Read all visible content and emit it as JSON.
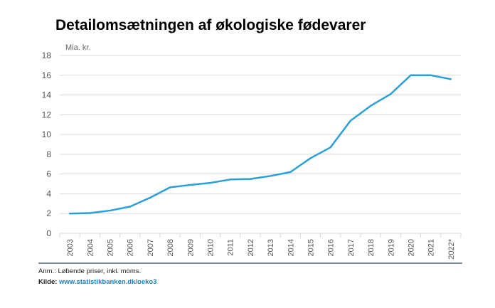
{
  "title": "Detailomsætningen af økologiske fødevarer",
  "note": "Anm.: Løbende priser, inkl. moms.",
  "source": {
    "label": "Kilde:",
    "link": "www.statistikbanken.dk/oeko3"
  },
  "colors": {
    "line": "#2a9fd8",
    "grid": "#d9d9d9",
    "bottom_rule": "#2a4a6a"
  },
  "chart_data": {
    "type": "line",
    "title": "Detailomsætningen af økologiske fødevarer",
    "ylabel": "Mia. kr.",
    "xlabel": "",
    "ylim": [
      0,
      18
    ],
    "yticks": [
      0,
      2,
      4,
      6,
      8,
      10,
      12,
      14,
      16,
      18
    ],
    "grid": true,
    "categories": [
      "2003",
      "2004",
      "2005",
      "2006",
      "2007",
      "2008",
      "2009",
      "2010",
      "2011",
      "2012",
      "2013",
      "2014",
      "2015",
      "2016",
      "2017",
      "2018",
      "2019",
      "2020",
      "2021",
      "2022*"
    ],
    "values": [
      2.0,
      2.05,
      2.3,
      2.7,
      3.6,
      4.65,
      4.9,
      5.1,
      5.45,
      5.5,
      5.8,
      6.2,
      7.6,
      8.7,
      11.4,
      12.9,
      14.1,
      16.0,
      16.0,
      15.6
    ]
  }
}
